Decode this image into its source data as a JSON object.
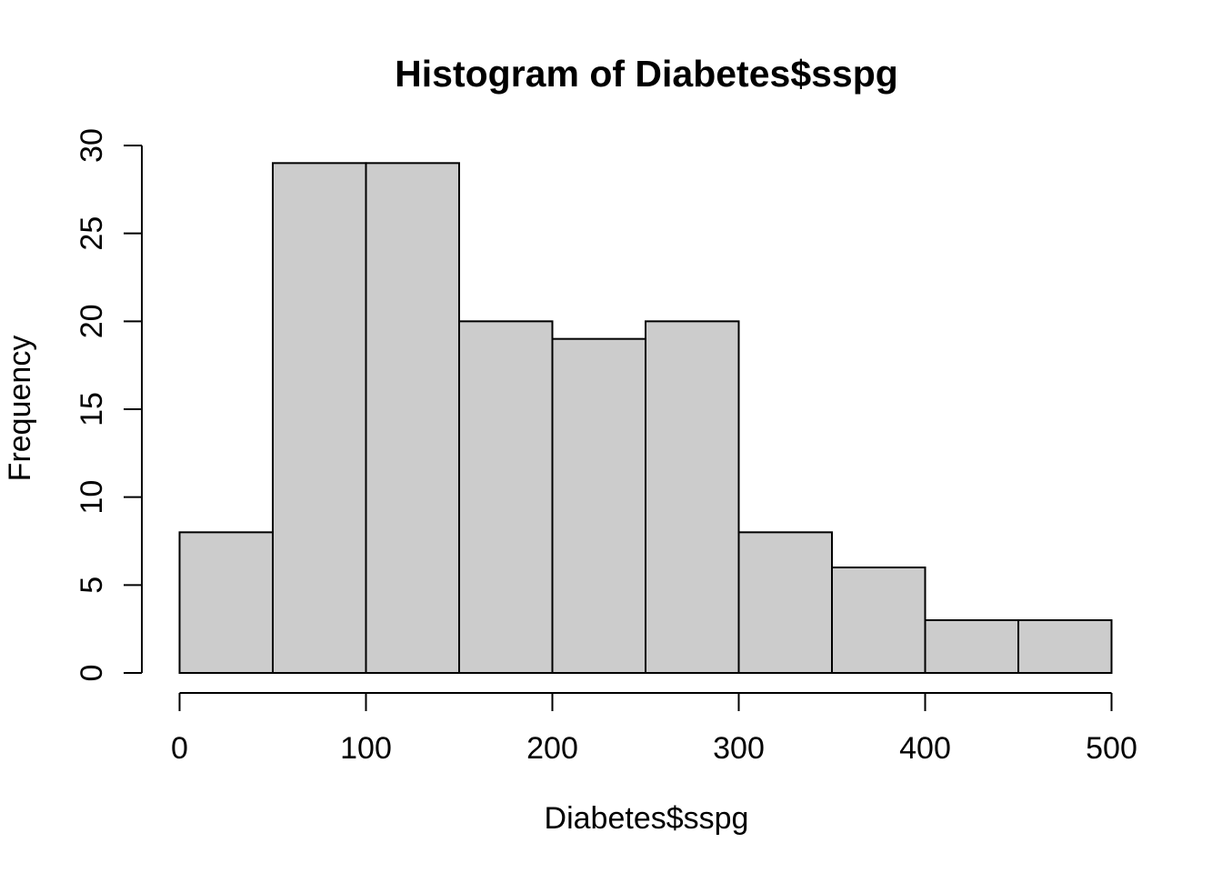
{
  "figure": {
    "background": "#FFFFFF",
    "foreground": "#000000"
  },
  "chart_data": {
    "type": "bar",
    "subtype": "histogram",
    "title": "Histogram of Diabetes$sspg",
    "xlabel": "Diabetes$sspg",
    "ylabel": "Frequency",
    "bin_edges": [
      0,
      50,
      100,
      150,
      200,
      250,
      300,
      350,
      400,
      450,
      500
    ],
    "values": [
      8,
      29,
      29,
      20,
      19,
      20,
      8,
      6,
      3,
      3
    ],
    "xticks": [
      0,
      100,
      200,
      300,
      400,
      500
    ],
    "yticks": [
      0,
      5,
      10,
      15,
      20,
      25,
      30
    ],
    "xlim": [
      0,
      500
    ],
    "ylim": [
      0,
      30
    ],
    "grid": false,
    "legend": null,
    "bar_fill": "#CCCCCC",
    "bar_stroke": "#000000",
    "axis_color": "#000000"
  }
}
